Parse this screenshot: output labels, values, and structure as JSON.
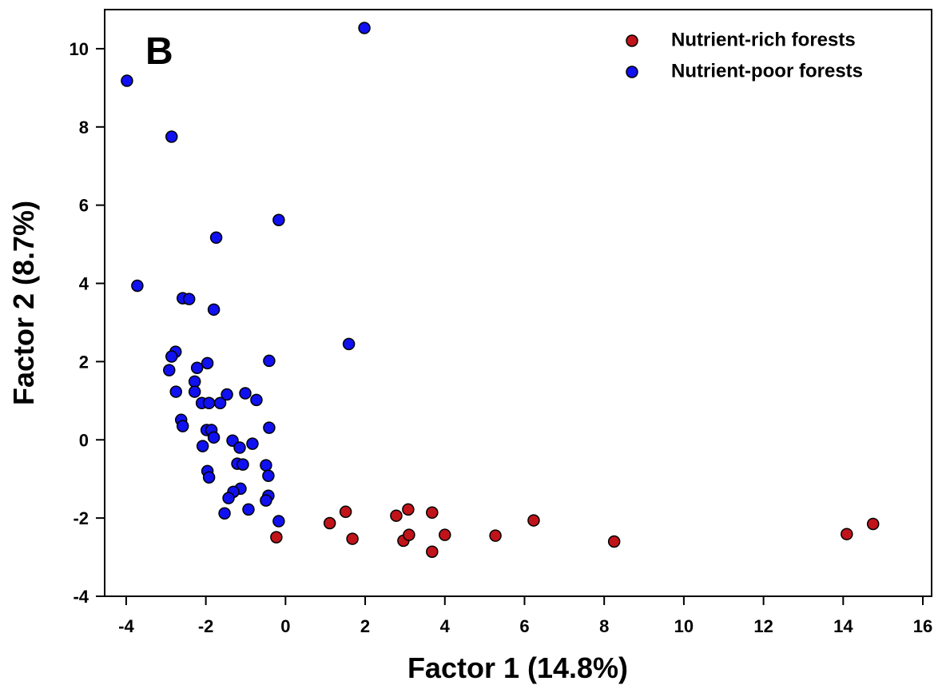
{
  "chart_data": {
    "type": "scatter",
    "annotation": "B",
    "x_label": "Factor 1 (14.8%)",
    "y_label": "Factor 2 (8.7%)",
    "xlim": [
      -4.54,
      16.22
    ],
    "ylim": [
      -4,
      11
    ],
    "xticks": [
      -4,
      -2,
      0,
      2,
      4,
      6,
      8,
      10,
      12,
      14,
      16
    ],
    "yticks": [
      -4,
      -2,
      0,
      2,
      4,
      6,
      8,
      10
    ],
    "legend": "upper right",
    "series": [
      {
        "name": "Nutrient-rich forests",
        "color": "#c0141a",
        "x": [
          -0.23,
          1.11,
          1.51,
          1.68,
          2.78,
          2.96,
          3.08,
          3.1,
          3.68,
          3.68,
          4.0,
          5.27,
          6.23,
          8.25,
          14.09,
          14.75
        ],
        "values": [
          -2.49,
          -2.13,
          -1.84,
          -2.53,
          -1.94,
          -2.58,
          -1.78,
          -2.43,
          -1.86,
          -2.86,
          -2.43,
          -2.45,
          -2.06,
          -2.6,
          -2.41,
          -2.15
        ]
      },
      {
        "name": "Nutrient-poor forests",
        "color": "#1010f0",
        "x": [
          -3.98,
          1.98,
          -2.86,
          -0.17,
          -1.74,
          -3.72,
          -2.58,
          -2.42,
          -1.8,
          1.59,
          -0.41,
          -2.76,
          -2.86,
          -2.92,
          -2.22,
          -1.96,
          -2.28,
          -2.75,
          -2.28,
          -2.1,
          -1.92,
          -1.64,
          -1.47,
          -1.01,
          -0.73,
          -0.41,
          -2.62,
          -2.58,
          -1.98,
          -1.86,
          -1.8,
          -1.33,
          -1.15,
          -0.83,
          -2.08,
          -1.21,
          -1.07,
          -0.49,
          -0.43,
          -1.96,
          -1.92,
          -1.13,
          -1.31,
          -1.43,
          -0.43,
          -0.49,
          -0.93,
          -1.53,
          -0.17
        ],
        "values": [
          9.18,
          10.53,
          7.75,
          5.62,
          5.17,
          3.94,
          3.62,
          3.6,
          3.33,
          2.45,
          2.02,
          2.25,
          2.13,
          1.78,
          1.84,
          1.96,
          1.49,
          1.23,
          1.23,
          0.94,
          0.94,
          0.94,
          1.16,
          1.19,
          1.02,
          0.31,
          0.51,
          0.35,
          0.25,
          0.25,
          0.06,
          -0.02,
          -0.2,
          -0.1,
          -0.16,
          -0.61,
          -0.63,
          -0.65,
          -0.92,
          -0.8,
          -0.96,
          -1.25,
          -1.33,
          -1.49,
          -1.43,
          -1.55,
          -1.78,
          -1.88,
          -2.08
        ]
      }
    ]
  }
}
